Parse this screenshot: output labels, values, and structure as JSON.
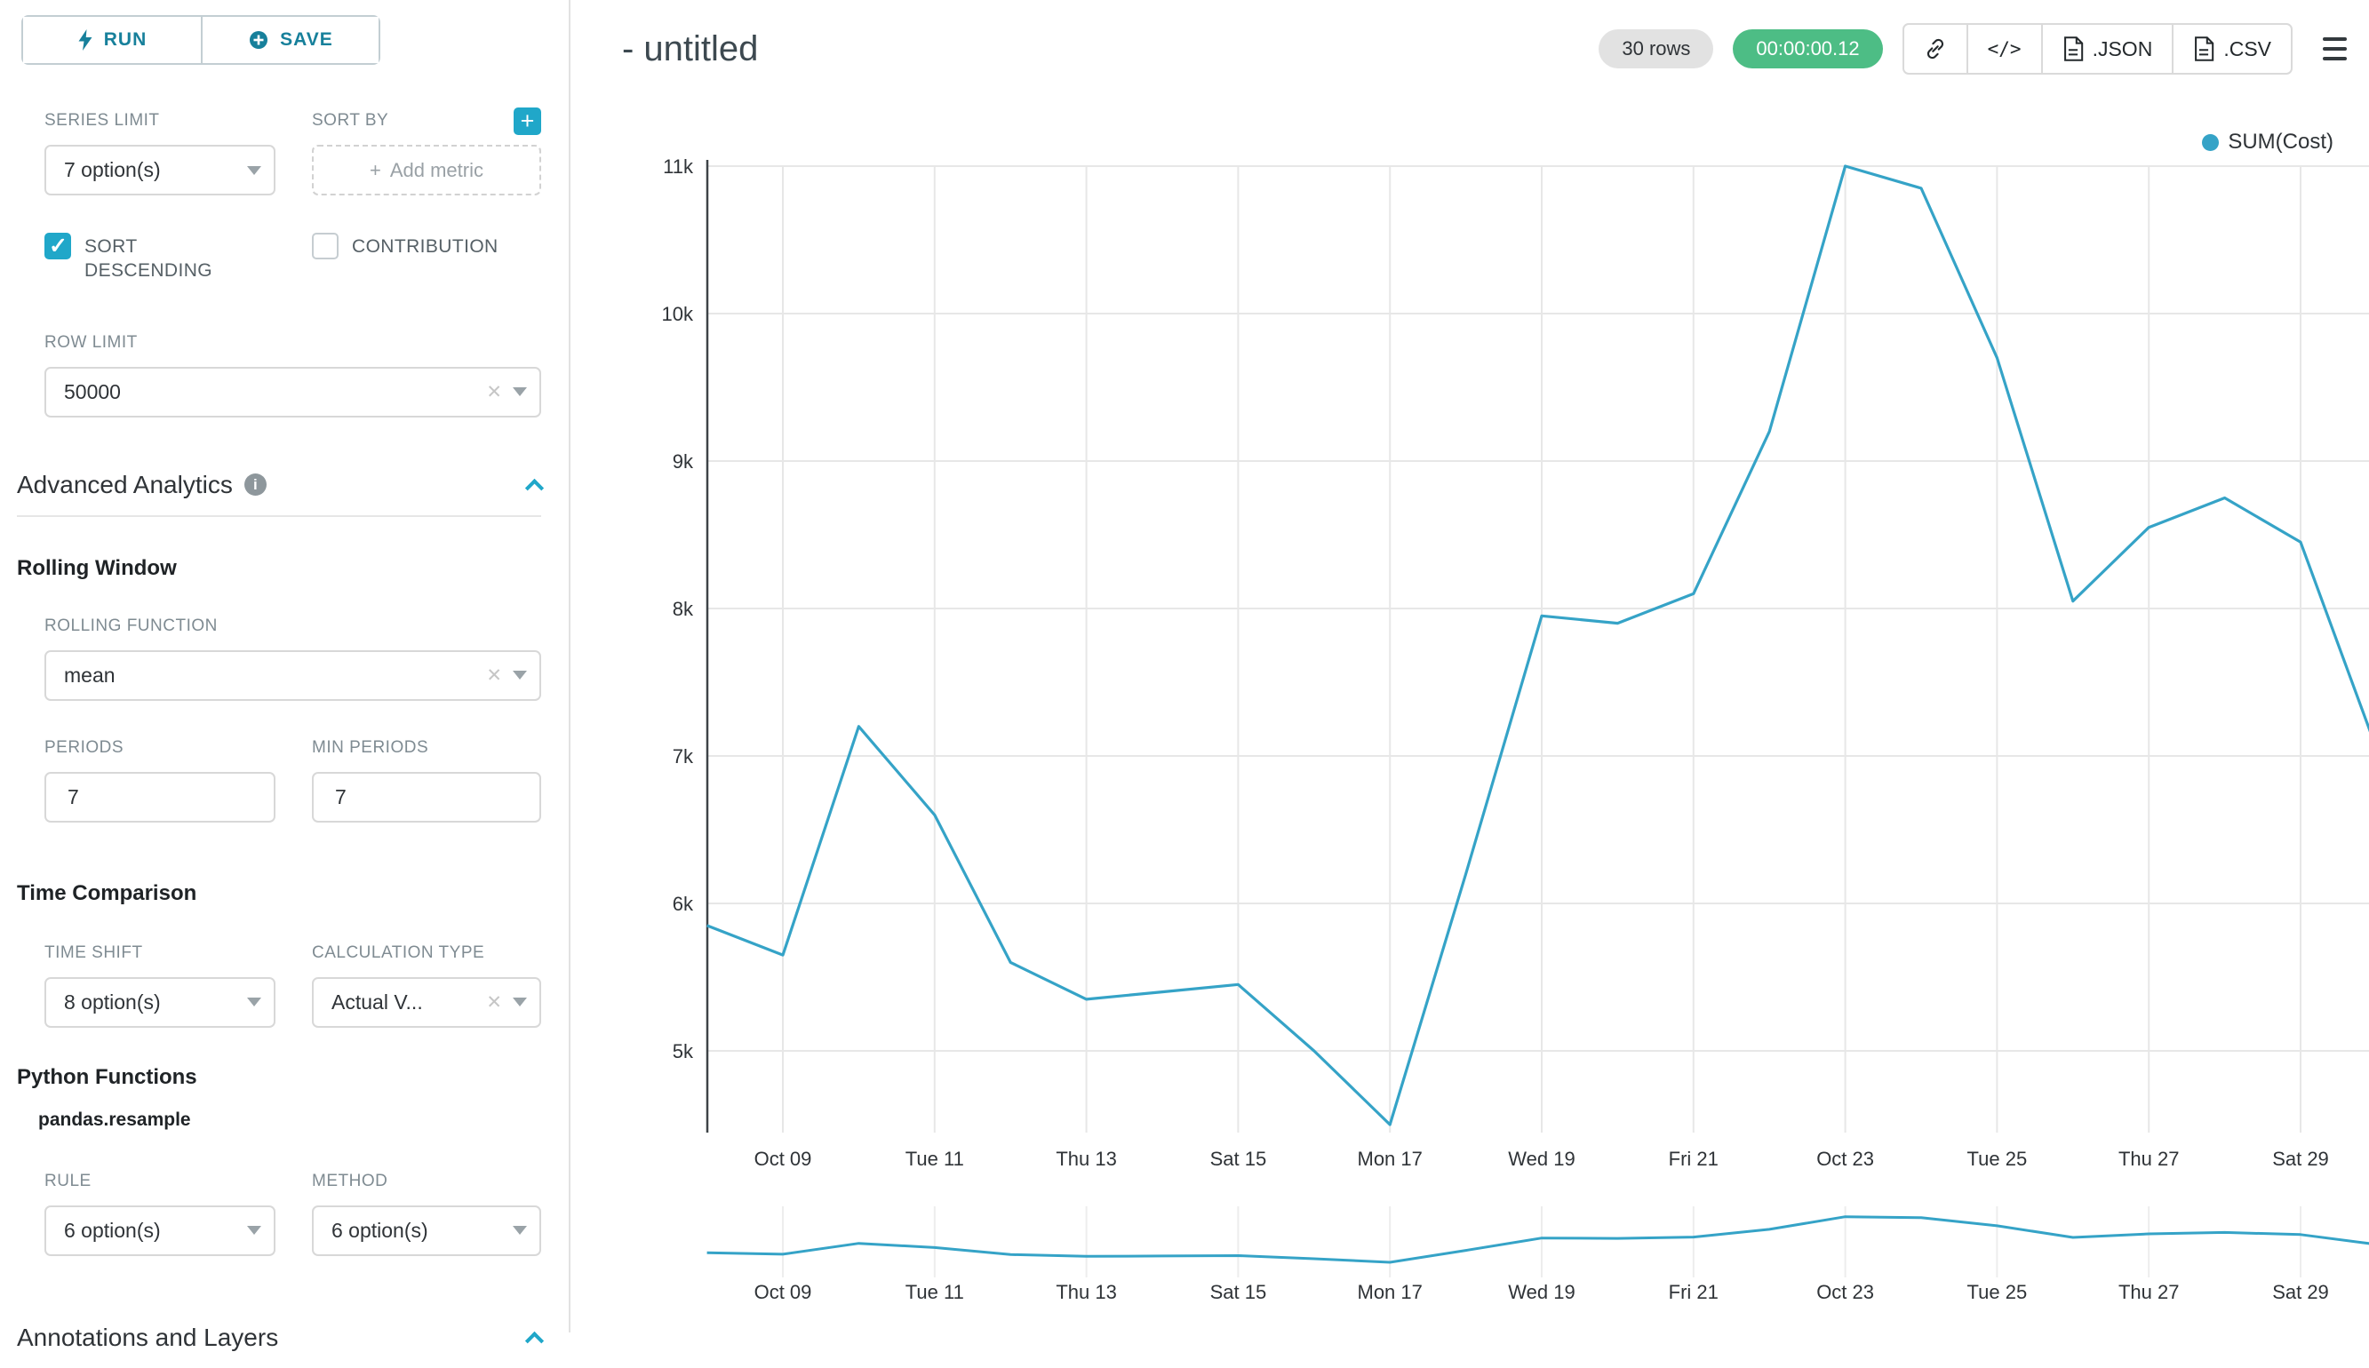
{
  "colors": {
    "accent": "#20a7c9",
    "timer_green": "#4dbd85",
    "line": "#35a3c7"
  },
  "sidebar": {
    "run_label": "RUN",
    "save_label": "SAVE",
    "series_limit": {
      "label": "SERIES LIMIT",
      "value": "7 option(s)"
    },
    "sort_by": {
      "label": "SORT BY",
      "placeholder": "Add metric"
    },
    "sort_descending": {
      "label": "SORT DESCENDING"
    },
    "contribution": {
      "label": "CONTRIBUTION"
    },
    "row_limit": {
      "label": "ROW LIMIT",
      "value": "50000"
    },
    "advanced_analytics": {
      "title": "Advanced Analytics"
    },
    "rolling_window": {
      "title": "Rolling Window",
      "rolling_function": {
        "label": "ROLLING FUNCTION",
        "value": "mean"
      },
      "periods": {
        "label": "PERIODS",
        "value": "7"
      },
      "min_periods": {
        "label": "MIN PERIODS",
        "value": "7"
      }
    },
    "time_comparison": {
      "title": "Time Comparison",
      "time_shift": {
        "label": "TIME SHIFT",
        "value": "8 option(s)"
      },
      "calculation_type": {
        "label": "CALCULATION TYPE",
        "value": "Actual V..."
      }
    },
    "python_functions": {
      "title": "Python Functions",
      "subtitle": "pandas.resample",
      "rule": {
        "label": "RULE",
        "value": "6 option(s)"
      },
      "method": {
        "label": "METHOD",
        "value": "6 option(s)"
      }
    },
    "annotations": {
      "title": "Annotations and Layers"
    }
  },
  "header": {
    "title": "- untitled",
    "rows_badge": "30 rows",
    "timer": "00:00:00.12",
    "embed_glyph": "</>",
    "json_label": ".JSON",
    "csv_label": ".CSV"
  },
  "chart_data": {
    "type": "line",
    "title": "- untitled",
    "legend_label": "SUM(Cost)",
    "legend_position": "top-right",
    "grid": true,
    "color": "#35a3c7",
    "x": [
      "Oct 08",
      "Oct 09",
      "Oct 10",
      "Oct 11",
      "Oct 12",
      "Oct 13",
      "Oct 14",
      "Oct 15",
      "Oct 16",
      "Oct 17",
      "Oct 18",
      "Oct 19",
      "Oct 20",
      "Oct 21",
      "Oct 22",
      "Oct 23",
      "Oct 24",
      "Oct 25",
      "Oct 26",
      "Oct 27",
      "Oct 28",
      "Oct 29",
      "Oct 30"
    ],
    "series": [
      {
        "name": "SUM(Cost)",
        "values": [
          5850,
          5650,
          7200,
          6600,
          5600,
          5350,
          5400,
          5450,
          5000,
          4500,
          6200,
          7950,
          7900,
          8100,
          9200,
          11000,
          10850,
          9700,
          8050,
          8550,
          8750,
          8450,
          7050
        ]
      }
    ],
    "tick_indices": [
      1,
      3,
      5,
      7,
      9,
      11,
      13,
      15,
      17,
      19,
      21
    ],
    "tick_labels": [
      "Oct 09",
      "Tue 11",
      "Thu 13",
      "Sat 15",
      "Mon 17",
      "Wed 19",
      "Fri 21",
      "Oct 23",
      "Tue 25",
      "Thu 27",
      "Sat 29"
    ],
    "y_ticks": [
      {
        "value": 11000,
        "label": "11k"
      },
      {
        "value": 10000,
        "label": "10k"
      },
      {
        "value": 9000,
        "label": "9k"
      },
      {
        "value": 8000,
        "label": "8k"
      },
      {
        "value": 7000,
        "label": "7k"
      },
      {
        "value": 6000,
        "label": "6k"
      },
      {
        "value": 5000,
        "label": "5k"
      }
    ],
    "ylim": [
      4450,
      11000
    ],
    "xlabel": "",
    "ylabel": ""
  }
}
